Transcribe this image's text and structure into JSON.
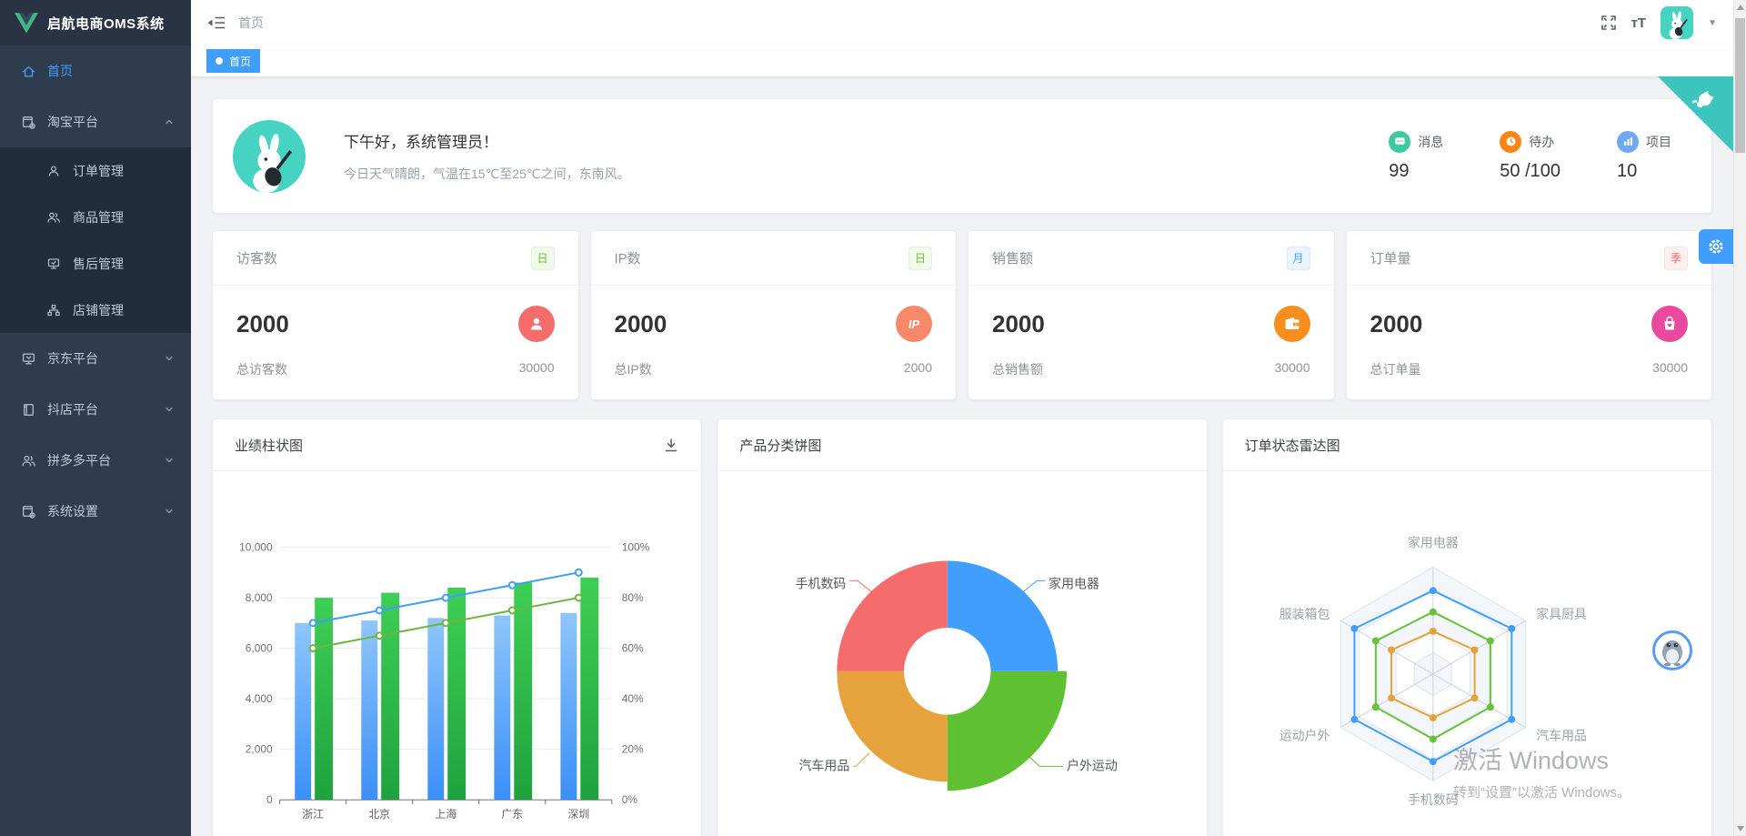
{
  "app": {
    "title": "启航电商OMS系统"
  },
  "sidebar": {
    "items": [
      {
        "label": "首页",
        "active": true
      },
      {
        "label": "淘宝平台",
        "expanded": true,
        "children": [
          {
            "label": "订单管理"
          },
          {
            "label": "商品管理"
          },
          {
            "label": "售后管理"
          },
          {
            "label": "店铺管理"
          }
        ]
      },
      {
        "label": "京东平台"
      },
      {
        "label": "抖店平台"
      },
      {
        "label": "拼多多平台"
      },
      {
        "label": "系统设置"
      }
    ]
  },
  "header": {
    "breadcrumb": "首页",
    "font_size_icon_text": "тT"
  },
  "tabs": [
    {
      "label": "首页",
      "active": true
    }
  ],
  "welcome": {
    "greeting": "下午好，系统管理员！",
    "weather": "今日天气晴朗，气温在15℃至25℃之间，东南风。",
    "stats": [
      {
        "label": "消息",
        "value": "99",
        "color": "#3fc9a2"
      },
      {
        "label": "待办",
        "value": "50 /100",
        "color": "#ff8516"
      },
      {
        "label": "项目",
        "value": "10",
        "color": "#6fa8f5"
      }
    ]
  },
  "stat_cards": [
    {
      "title": "访客数",
      "badge": "日",
      "badge_color": "green",
      "value": "2000",
      "icon": "visitor-icon",
      "icon_color": "#f56c6c",
      "icon_text": "",
      "footer_label": "总访客数",
      "footer_value": "30000"
    },
    {
      "title": "IP数",
      "badge": "日",
      "badge_color": "green",
      "value": "2000",
      "icon": "ip-icon",
      "icon_color": "#f7886a",
      "icon_text": "IP",
      "footer_label": "总IP数",
      "footer_value": "2000"
    },
    {
      "title": "销售额",
      "badge": "月",
      "badge_color": "blue",
      "value": "2000",
      "icon": "wallet-icon",
      "icon_color": "#f78e1e",
      "icon_text": "",
      "footer_label": "总销售额",
      "footer_value": "30000"
    },
    {
      "title": "订单量",
      "badge": "季",
      "badge_color": "red",
      "value": "2000",
      "icon": "bag-icon",
      "icon_color": "#eb48a0",
      "icon_text": "",
      "footer_label": "总订单量",
      "footer_value": "30000"
    }
  ],
  "chart_data": [
    {
      "type": "bar",
      "title": "业绩柱状图",
      "categories": [
        "浙江",
        "北京",
        "上海",
        "广东",
        "深圳"
      ],
      "series": [
        {
          "name": "bar-blue",
          "type": "bar",
          "yaxis": "left",
          "values": [
            7000,
            7100,
            7200,
            7300,
            7400
          ],
          "color_top": "#8fc6fb",
          "color_bottom": "#3a8ff7"
        },
        {
          "name": "bar-green",
          "type": "bar",
          "yaxis": "left",
          "values": [
            8000,
            8200,
            8400,
            8600,
            8800
          ],
          "color_top": "#3ecf55",
          "color_bottom": "#1fa23e"
        },
        {
          "name": "line-blue",
          "type": "line",
          "yaxis": "right",
          "values": [
            70,
            75,
            80,
            85,
            90
          ],
          "color": "#409eff"
        },
        {
          "name": "line-green",
          "type": "line",
          "yaxis": "right",
          "values": [
            60,
            65,
            70,
            75,
            80
          ],
          "color": "#6fb53f"
        }
      ],
      "ylim": [
        0,
        10000
      ],
      "y_ticks": [
        "0",
        "2,000",
        "4,000",
        "6,000",
        "8,000",
        "10,000"
      ],
      "y2lim": [
        0,
        100
      ],
      "y2_ticks": [
        "0%",
        "20%",
        "40%",
        "60%",
        "80%",
        "100%"
      ],
      "grid": true,
      "legend": false
    },
    {
      "type": "pie",
      "title": "产品分类饼图",
      "inner_radius_ratio": 0.4,
      "slices": [
        {
          "label": "家用电器",
          "value": 25,
          "color": "#409eff"
        },
        {
          "label": "户外运动",
          "value": 25,
          "color": "#5fc131",
          "selected": true
        },
        {
          "label": "汽车用品",
          "value": 25,
          "color": "#e6a23c"
        },
        {
          "label": "手机数码",
          "value": 25,
          "color": "#f56c6c"
        }
      ]
    },
    {
      "type": "radar",
      "title": "订单状态雷达图",
      "max": 100,
      "axes": [
        "家用电器",
        "家具厨具",
        "汽车用品",
        "手机数码",
        "运动户外",
        "服装箱包"
      ],
      "series": [
        {
          "name": "radar-blue",
          "color": "#409eff",
          "values": [
            78,
            85,
            85,
            82,
            85,
            85
          ]
        },
        {
          "name": "radar-green",
          "color": "#67c23a",
          "values": [
            58,
            62,
            62,
            61,
            62,
            62
          ]
        },
        {
          "name": "radar-orange",
          "color": "#e6a23c",
          "values": [
            40,
            45,
            45,
            41,
            45,
            45
          ]
        }
      ]
    }
  ],
  "watermark": {
    "line1": "激活 Windows",
    "line2": "转到“设置”以激活 Windows。"
  }
}
